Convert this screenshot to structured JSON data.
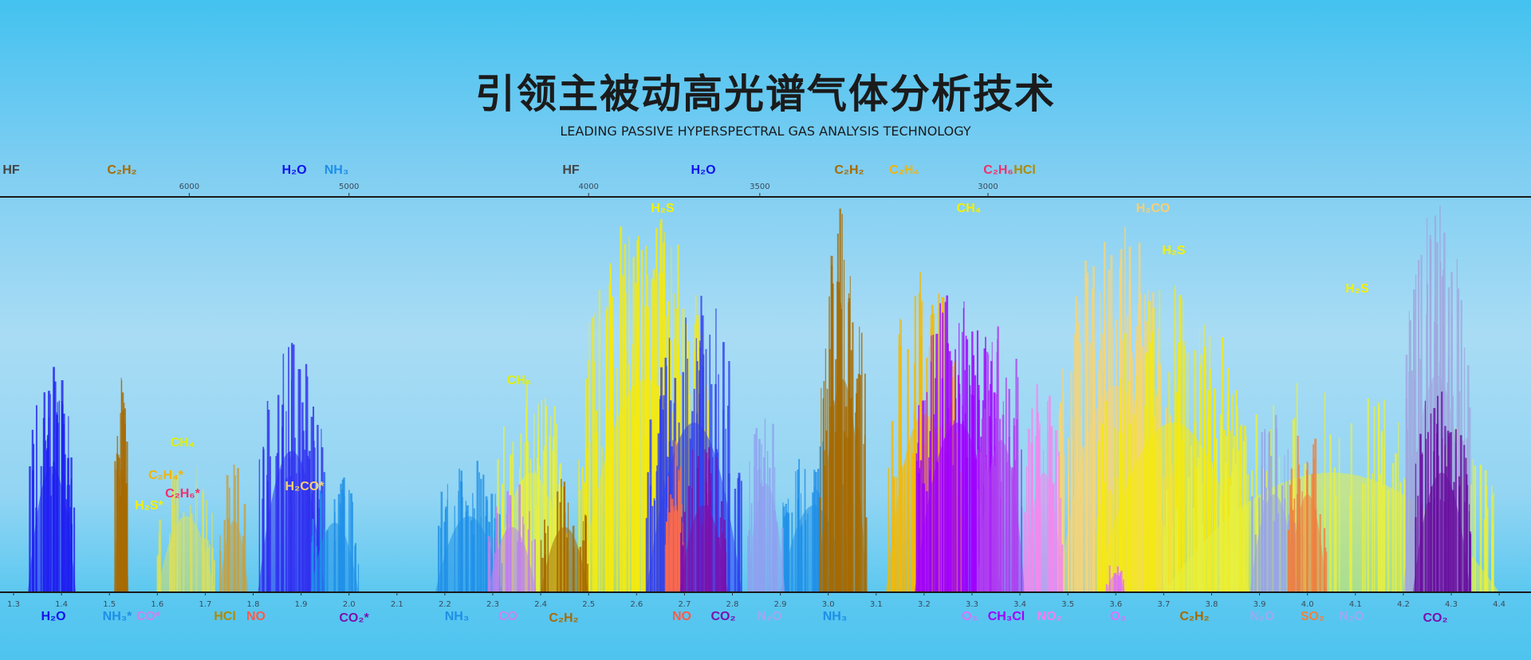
{
  "header": {
    "title": "引领主被动高光谱气体分析技术",
    "subtitle": "LEADING PASSIVE HYPERSPECTRAL GAS ANALYSIS TECHNOLOGY"
  },
  "chart_data": {
    "type": "area",
    "title": "",
    "xlabel": "",
    "ylabel": "",
    "xlim": [
      1.27,
      4.5
    ],
    "x_ticks": [
      "1.3",
      "1.4",
      "1.5",
      "1.6",
      "1.7",
      "1.8",
      "1.9",
      "2.0",
      "2.1",
      "2.2",
      "2.3",
      "2.4",
      "2.5",
      "2.6",
      "2.7",
      "2.8",
      "2.9",
      "3.0",
      "3.1",
      "3.2",
      "3.3",
      "3.4",
      "3.5",
      "3.6",
      "3.7",
      "3.8",
      "3.9",
      "4.0",
      "4.1",
      "4.2",
      "4.3",
      "4.4"
    ],
    "top_axis_ticks": [
      "6000",
      "5000",
      "4000",
      "3500",
      "3000"
    ],
    "grid": false,
    "top_labels": [
      {
        "text": "HF",
        "color": "#444444"
      },
      {
        "text": "C₂H₂",
        "color": "#a86a00"
      },
      {
        "text": "H₂O",
        "color": "#1010ee"
      },
      {
        "text": "NH₃",
        "color": "#1e8ee8"
      },
      {
        "text": "HF",
        "color": "#444444"
      },
      {
        "text": "H₂O",
        "color": "#1010ee"
      },
      {
        "text": "C₂H₂",
        "color": "#a86a00"
      },
      {
        "text": "C₂H₄",
        "color": "#f5b400"
      },
      {
        "text": "C₂H₆",
        "color": "#f0306a"
      },
      {
        "text": "HCl",
        "color": "#b08a00"
      }
    ],
    "bottom_labels": [
      {
        "text": "H₂O",
        "color": "#1010ee"
      },
      {
        "text": "NH₃*",
        "color": "#1e8ee8"
      },
      {
        "text": "CO*",
        "color": "#d080f0"
      },
      {
        "text": "HCl",
        "color": "#b08a00"
      },
      {
        "text": "NO",
        "color": "#ff5a4a"
      },
      {
        "text": "CO₂*",
        "color": "#7a10b0"
      },
      {
        "text": "NH₃",
        "color": "#1e8ee8"
      },
      {
        "text": "CO",
        "color": "#d080f0"
      },
      {
        "text": "C₂H₂",
        "color": "#a86a00"
      },
      {
        "text": "NO",
        "color": "#ff5a4a"
      },
      {
        "text": "CO₂",
        "color": "#7a10b0"
      },
      {
        "text": "N₂O",
        "color": "#a0a8f0"
      },
      {
        "text": "NH₃",
        "color": "#1e8ee8"
      },
      {
        "text": "O₃",
        "color": "#e070ff"
      },
      {
        "text": "CH₃Cl",
        "color": "#a000ff"
      },
      {
        "text": "NO₂",
        "color": "#f080f0"
      },
      {
        "text": "O₃",
        "color": "#e070ff"
      },
      {
        "text": "C₂H₂",
        "color": "#a86a00"
      },
      {
        "text": "N₂O",
        "color": "#a0a8f0"
      },
      {
        "text": "SO₂",
        "color": "#f08040"
      },
      {
        "text": "N₂O",
        "color": "#a0a8f0"
      },
      {
        "text": "CO₂",
        "color": "#7a10b0"
      }
    ],
    "plot_labels": [
      {
        "text": "H₂S",
        "color": "#f5f000"
      },
      {
        "text": "CH₄",
        "color": "#f5f000"
      },
      {
        "text": "H₂CO",
        "color": "#f7d070"
      },
      {
        "text": "H₂S",
        "color": "#f5f000"
      },
      {
        "text": "H₂S",
        "color": "#f5f000"
      },
      {
        "text": "CH₄",
        "color": "#e0f000"
      },
      {
        "text": "CH₄",
        "color": "#e0f000"
      },
      {
        "text": "C₂H₄*",
        "color": "#f5b400"
      },
      {
        "text": "C₂H₆*",
        "color": "#f0306a"
      },
      {
        "text": "H₂S*",
        "color": "#f5f000"
      },
      {
        "text": "H₂CO*",
        "color": "#f7d070"
      }
    ],
    "series": [
      {
        "gas": "H2S",
        "color": "#f5ea10",
        "center": 2.62,
        "width": 0.14,
        "peak": 0.98,
        "n": 140
      },
      {
        "gas": "H2CO",
        "color": "#f4d57a",
        "center": 3.6,
        "width": 0.12,
        "peak": 0.95,
        "n": 120
      },
      {
        "gas": "H2S",
        "color": "#f5ea10",
        "center": 3.72,
        "width": 0.16,
        "peak": 0.78,
        "n": 110
      },
      {
        "gas": "CH4",
        "color": "#e8f040",
        "center": 2.38,
        "width": 0.08,
        "peak": 0.55,
        "n": 50
      },
      {
        "gas": "CH4",
        "color": "#d8e060",
        "center": 1.66,
        "width": 0.06,
        "peak": 0.35,
        "n": 30
      },
      {
        "gas": "CH4",
        "color": "#e8f040",
        "center": 4.05,
        "width": 0.35,
        "peak": 0.55,
        "n": 120
      },
      {
        "gas": "H2O",
        "color": "#2020f0",
        "center": 1.38,
        "width": 0.05,
        "peak": 0.58,
        "n": 50
      },
      {
        "gas": "H2O",
        "color": "#3030f0",
        "center": 1.88,
        "width": 0.07,
        "peak": 0.65,
        "n": 60
      },
      {
        "gas": "H2O",
        "color": "#3040f0",
        "center": 2.72,
        "width": 0.1,
        "peak": 0.78,
        "n": 70
      },
      {
        "gas": "NH3",
        "color": "#2090e8",
        "center": 1.97,
        "width": 0.05,
        "peak": 0.32,
        "n": 30
      },
      {
        "gas": "NH3",
        "color": "#2090e8",
        "center": 2.25,
        "width": 0.07,
        "peak": 0.35,
        "n": 40
      },
      {
        "gas": "NH3",
        "color": "#2090e8",
        "center": 2.97,
        "width": 0.07,
        "peak": 0.4,
        "n": 40
      },
      {
        "gas": "C2H2",
        "color": "#a86a00",
        "center": 1.525,
        "width": 0.015,
        "peak": 0.57,
        "n": 20
      },
      {
        "gas": "C2H2",
        "color": "#a86a00",
        "center": 2.45,
        "width": 0.05,
        "peak": 0.3,
        "n": 25
      },
      {
        "gas": "C2H2",
        "color": "#a86a00",
        "center": 3.03,
        "width": 0.05,
        "peak": 0.98,
        "n": 60
      },
      {
        "gas": "HCl",
        "color": "#c8a040",
        "center": 1.76,
        "width": 0.03,
        "peak": 0.33,
        "n": 12
      },
      {
        "gas": "CO",
        "color": "#c080f0",
        "center": 2.34,
        "width": 0.05,
        "peak": 0.3,
        "n": 25
      },
      {
        "gas": "NO",
        "color": "#ff6a4a",
        "center": 2.68,
        "width": 0.02,
        "peak": 0.4,
        "n": 25
      },
      {
        "gas": "CO2",
        "color": "#7a10b0",
        "center": 2.74,
        "width": 0.05,
        "peak": 0.4,
        "n": 30
      },
      {
        "gas": "N2O",
        "color": "#90a0f0",
        "center": 2.87,
        "width": 0.04,
        "peak": 0.5,
        "n": 25
      },
      {
        "gas": "C2H4",
        "color": "#f8b800",
        "center": 3.2,
        "width": 0.08,
        "peak": 0.82,
        "n": 60
      },
      {
        "gas": "O3",
        "color": "#a000ff",
        "center": 3.27,
        "width": 0.09,
        "peak": 0.78,
        "n": 90
      },
      {
        "gas": "CH3Cl",
        "color": "#b040f0",
        "center": 3.36,
        "width": 0.05,
        "peak": 0.7,
        "n": 40
      },
      {
        "gas": "NO2",
        "color": "#f488ee",
        "center": 3.45,
        "width": 0.04,
        "peak": 0.55,
        "n": 35
      },
      {
        "gas": "O3",
        "color": "#e070ff",
        "center": 3.6,
        "width": 0.02,
        "peak": 0.08,
        "n": 10
      },
      {
        "gas": "N2O",
        "color": "#98a4e8",
        "center": 3.93,
        "width": 0.05,
        "peak": 0.45,
        "n": 30
      },
      {
        "gas": "SO2",
        "color": "#f08040",
        "center": 4.0,
        "width": 0.04,
        "peak": 0.45,
        "n": 30
      },
      {
        "gas": "N2O",
        "color": "#a0a8e0",
        "center": 4.27,
        "width": 0.07,
        "peak": 1.0,
        "n": 70
      },
      {
        "gas": "CO2",
        "color": "#6a10a0",
        "center": 4.28,
        "width": 0.06,
        "peak": 0.55,
        "n": 50
      }
    ]
  }
}
